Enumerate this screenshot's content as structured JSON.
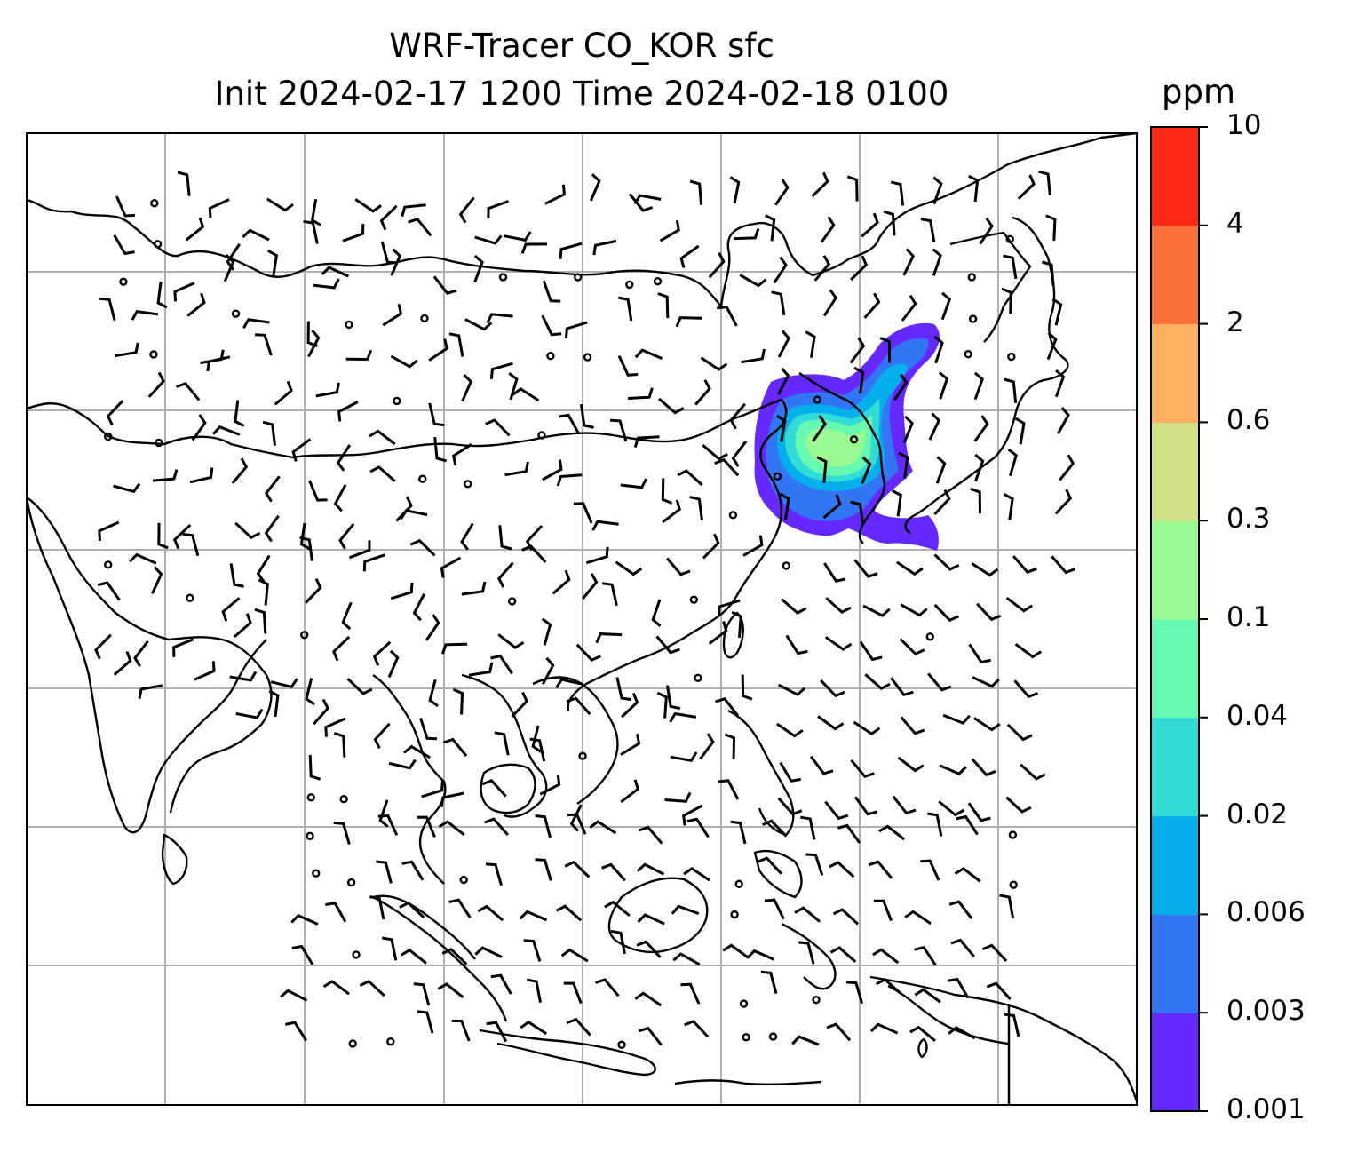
{
  "title": {
    "line1": "WRF-Tracer CO_KOR sfc",
    "line2": "Init 2024-02-17 1200 Time 2024-02-18 0100"
  },
  "colorbar": {
    "unit": "ppm",
    "levels": [
      "0.001",
      "0.003",
      "0.006",
      "0.02",
      "0.04",
      "0.1",
      "0.3",
      "0.6",
      "2",
      "4",
      "10"
    ],
    "colors": [
      "#6528ff",
      "#3376f5",
      "#03b0ec",
      "#32dbd6",
      "#67f8b1",
      "#9afa91",
      "#cfe085",
      "#ffb15f",
      "#ff7039",
      "#ff2a15"
    ]
  },
  "map": {
    "gridlines": "on",
    "region": "East and Southeast Asia",
    "overlay": "wind barbs",
    "plume": "CO_KOR tracer over Korea / northeast China"
  }
}
